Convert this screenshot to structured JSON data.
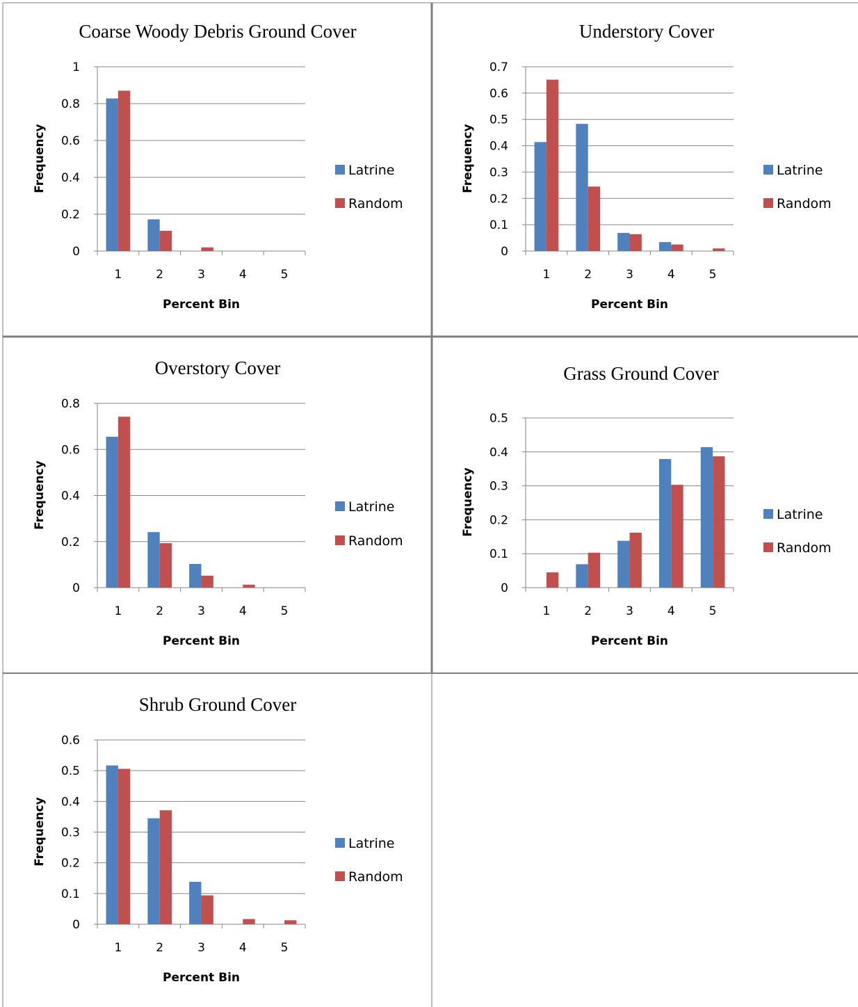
{
  "colors": {
    "Latrine": "#4f81bd",
    "Random": "#c0504d"
  },
  "chart_data": [
    {
      "type": "bar",
      "title": "Coarse Woody Debris Ground Cover",
      "xlabel": "Percent Bin",
      "ylabel": "Frequency",
      "categories": [
        "1",
        "2",
        "3",
        "4",
        "5"
      ],
      "ylim": [
        0,
        1
      ],
      "yticks": [
        "0",
        "0.2",
        "0.4",
        "0.6",
        "0.8",
        "1"
      ],
      "legend": "right",
      "grid": true,
      "series": [
        {
          "name": "Latrine",
          "values": [
            0.828,
            0.172,
            0,
            0,
            0
          ]
        },
        {
          "name": "Random",
          "values": [
            0.87,
            0.11,
            0.02,
            0,
            0
          ]
        }
      ]
    },
    {
      "type": "bar",
      "title": "Understory Cover",
      "xlabel": "Percent Bin",
      "ylabel": "Frequency",
      "categories": [
        "1",
        "2",
        "3",
        "4",
        "5"
      ],
      "ylim": [
        0,
        0.7
      ],
      "yticks": [
        "0",
        "0.1",
        "0.2",
        "0.3",
        "0.4",
        "0.5",
        "0.6",
        "0.7"
      ],
      "legend": "right",
      "grid": true,
      "series": [
        {
          "name": "Latrine",
          "values": [
            0.414,
            0.483,
            0.069,
            0.034,
            0
          ]
        },
        {
          "name": "Random",
          "values": [
            0.651,
            0.245,
            0.064,
            0.025,
            0.01
          ]
        }
      ]
    },
    {
      "type": "bar",
      "title": "Overstory Cover",
      "xlabel": "Percent Bin",
      "ylabel": "Frequency",
      "categories": [
        "1",
        "2",
        "3",
        "4",
        "5"
      ],
      "ylim": [
        0,
        0.8
      ],
      "yticks": [
        "0",
        "0.2",
        "0.4",
        "0.6",
        "0.8"
      ],
      "legend": "right",
      "grid": true,
      "series": [
        {
          "name": "Latrine",
          "values": [
            0.655,
            0.241,
            0.103,
            0,
            0
          ]
        },
        {
          "name": "Random",
          "values": [
            0.742,
            0.193,
            0.052,
            0.013,
            0
          ]
        }
      ]
    },
    {
      "type": "bar",
      "title": "Grass Ground Cover",
      "xlabel": "Percent Bin",
      "ylabel": "Frequency",
      "categories": [
        "1",
        "2",
        "3",
        "4",
        "5"
      ],
      "ylim": [
        0,
        0.5
      ],
      "yticks": [
        "0",
        "0.1",
        "0.2",
        "0.3",
        "0.4",
        "0.5"
      ],
      "legend": "right",
      "grid": true,
      "series": [
        {
          "name": "Latrine",
          "values": [
            0,
            0.069,
            0.138,
            0.379,
            0.414
          ]
        },
        {
          "name": "Random",
          "values": [
            0.045,
            0.103,
            0.162,
            0.303,
            0.387
          ]
        }
      ]
    },
    {
      "type": "bar",
      "title": "Shrub Ground Cover",
      "xlabel": "Percent Bin",
      "ylabel": "Frequency",
      "categories": [
        "1",
        "2",
        "3",
        "4",
        "5"
      ],
      "ylim": [
        0,
        0.6
      ],
      "yticks": [
        "0",
        "0.1",
        "0.2",
        "0.3",
        "0.4",
        "0.5",
        "0.6"
      ],
      "legend": "right",
      "grid": true,
      "series": [
        {
          "name": "Latrine",
          "values": [
            0.517,
            0.345,
            0.138,
            0,
            0
          ]
        },
        {
          "name": "Random",
          "values": [
            0.506,
            0.371,
            0.094,
            0.017,
            0.013
          ]
        }
      ]
    }
  ]
}
